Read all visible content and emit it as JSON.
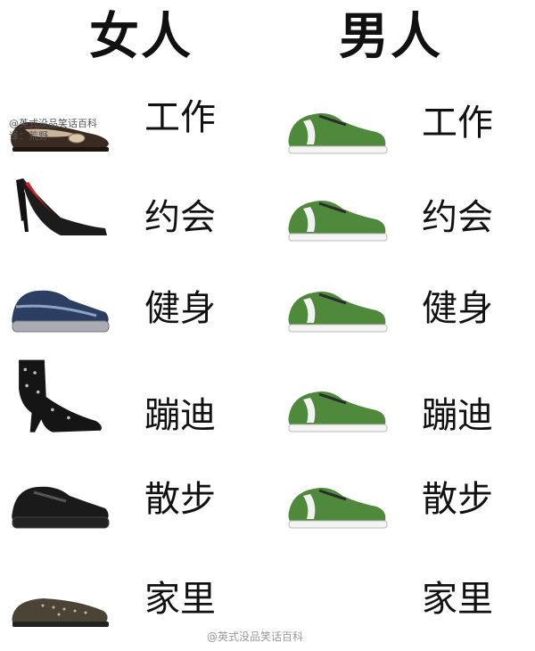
{
  "header": {
    "women": "女人",
    "men": "男人"
  },
  "rows": [
    {
      "women_label": "工作",
      "men_label": "工作"
    },
    {
      "women_label": "约会",
      "men_label": "约会"
    },
    {
      "women_label": "健身",
      "men_label": "健身"
    },
    {
      "women_label": "蹦迪",
      "men_label": "蹦迪"
    },
    {
      "women_label": "散步",
      "men_label": "散步"
    },
    {
      "women_label": "家里",
      "men_label": "家里"
    }
  ],
  "watermark": {
    "top_line1": "@英式没品笑话百科",
    "top_line2": "译：荒野",
    "bottom": "@英式没品笑话百科"
  },
  "colors": {
    "sneaker_green": "#4f8a3c",
    "heel_red": "#d01c24"
  }
}
